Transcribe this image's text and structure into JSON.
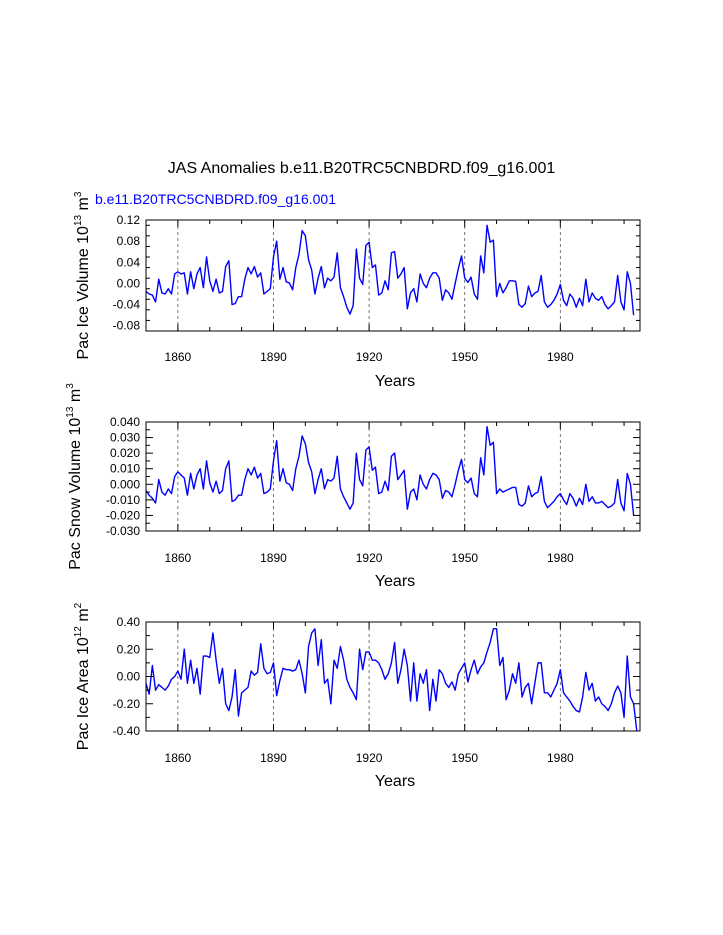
{
  "figure": {
    "title": "JAS Anomalies b.e11.B20TRC5CNBDRD.f09_g16.001",
    "series_label": "b.e11.B20TRC5CNBDRD.f09_g16.001",
    "series_color": "#0000ff",
    "axis_color": "#000000"
  },
  "chart_data": [
    {
      "type": "line",
      "name": "pac-ice-volume",
      "ylabel_main": "Pac Ice Volume 10",
      "ylabel_exp": "13",
      "ylabel_unit": " m",
      "ylabel_unit_exp": "3",
      "xlabel": "Years",
      "xlim": [
        1850,
        2005
      ],
      "ylim": [
        -0.09,
        0.12
      ],
      "xticks": [
        1860,
        1890,
        1920,
        1950,
        1980
      ],
      "xtick_labels": [
        "1860",
        "1890",
        "1920",
        "1950",
        "1980"
      ],
      "yticks": [
        -0.08,
        -0.04,
        0.0,
        0.04,
        0.08,
        0.12
      ],
      "ytick_labels": [
        "-0.08",
        "-0.04",
        "0.00",
        "0.04",
        "0.08",
        "0.12"
      ],
      "grid_x": [
        1860,
        1890,
        1920,
        1950,
        1980
      ],
      "x_start": 1850,
      "values": [
        -0.015,
        -0.02,
        -0.022,
        -0.035,
        0.008,
        -0.018,
        -0.02,
        -0.01,
        -0.02,
        0.018,
        0.022,
        0.018,
        0.02,
        -0.02,
        0.022,
        -0.01,
        0.018,
        0.03,
        -0.008,
        0.05,
        0.005,
        -0.015,
        0.008,
        -0.018,
        -0.015,
        0.032,
        0.043,
        -0.04,
        -0.038,
        -0.025,
        -0.025,
        0.008,
        0.03,
        0.018,
        0.032,
        0.012,
        0.02,
        -0.02,
        -0.015,
        -0.01,
        0.05,
        0.08,
        0.008,
        0.03,
        0.003,
        0.001,
        -0.012,
        0.03,
        0.055,
        0.1,
        0.09,
        0.045,
        0.025,
        -0.02,
        0.01,
        0.032,
        -0.008,
        0.01,
        0.005,
        0.012,
        0.058,
        -0.008,
        -0.025,
        -0.045,
        -0.058,
        -0.042,
        0.065,
        0.01,
        -0.002,
        0.072,
        0.078,
        0.03,
        0.035,
        -0.022,
        -0.018,
        0.005,
        -0.012,
        0.058,
        0.06,
        0.01,
        0.018,
        0.03,
        -0.048,
        -0.018,
        -0.01,
        -0.035,
        0.018,
        0.0,
        -0.008,
        0.01,
        0.02,
        0.02,
        0.01,
        -0.032,
        -0.012,
        -0.018,
        -0.03,
        0.0,
        0.028,
        0.052,
        0.01,
        0.002,
        0.012,
        -0.02,
        -0.03,
        0.052,
        0.02,
        0.11,
        0.078,
        0.082,
        -0.025,
        0.0,
        -0.018,
        -0.008,
        0.005,
        0.005,
        0.004,
        -0.04,
        -0.045,
        -0.038,
        -0.005,
        -0.025,
        -0.018,
        -0.015,
        0.015,
        -0.035,
        -0.045,
        -0.04,
        -0.032,
        -0.02,
        -0.002,
        -0.032,
        -0.042,
        -0.02,
        -0.028,
        -0.045,
        -0.028,
        -0.042,
        0.008,
        -0.035,
        -0.018,
        -0.028,
        -0.032,
        -0.025,
        -0.04,
        -0.048,
        -0.042,
        -0.035,
        0.015,
        -0.035,
        -0.05,
        0.022,
        0.0,
        -0.06
      ]
    },
    {
      "type": "line",
      "name": "pac-snow-volume",
      "ylabel_main": "Pac Snow Volume 10",
      "ylabel_exp": "13",
      "ylabel_unit": " m",
      "ylabel_unit_exp": "3",
      "xlabel": "Years",
      "xlim": [
        1850,
        2005
      ],
      "ylim": [
        -0.03,
        0.04
      ],
      "xticks": [
        1860,
        1890,
        1920,
        1950,
        1980
      ],
      "xtick_labels": [
        "1860",
        "1890",
        "1920",
        "1950",
        "1980"
      ],
      "yticks": [
        -0.03,
        -0.02,
        -0.01,
        0.0,
        0.01,
        0.02,
        0.03,
        0.04
      ],
      "ytick_labels": [
        "-0.030",
        "-0.020",
        "-0.010",
        "0.000",
        "0.010",
        "0.020",
        "0.030",
        "0.040"
      ],
      "grid_x": [
        1860,
        1890,
        1920,
        1950,
        1980
      ],
      "x_start": 1850,
      "values": [
        -0.004,
        -0.007,
        -0.009,
        -0.012,
        0.003,
        -0.005,
        -0.007,
        -0.003,
        -0.006,
        0.005,
        0.008,
        0.006,
        0.004,
        -0.007,
        0.007,
        -0.003,
        0.006,
        0.01,
        -0.003,
        0.015,
        0.001,
        -0.005,
        0.002,
        -0.006,
        -0.004,
        0.01,
        0.015,
        -0.011,
        -0.01,
        -0.007,
        -0.007,
        0.003,
        0.01,
        0.006,
        0.011,
        0.004,
        0.007,
        -0.006,
        -0.005,
        -0.003,
        0.015,
        0.028,
        0.002,
        0.01,
        0.001,
        0.0,
        -0.004,
        0.01,
        0.018,
        0.031,
        0.026,
        0.014,
        0.008,
        -0.006,
        0.003,
        0.01,
        -0.003,
        0.003,
        0.002,
        0.004,
        0.018,
        -0.003,
        -0.008,
        -0.012,
        -0.016,
        -0.012,
        0.02,
        0.003,
        -0.001,
        0.022,
        0.024,
        0.009,
        0.011,
        -0.006,
        -0.005,
        0.002,
        -0.004,
        0.018,
        0.02,
        0.003,
        0.006,
        0.009,
        -0.016,
        -0.005,
        -0.003,
        -0.01,
        0.006,
        0.0,
        -0.003,
        0.003,
        0.007,
        0.006,
        0.003,
        -0.009,
        -0.004,
        -0.005,
        -0.008,
        0.0,
        0.009,
        0.016,
        0.003,
        0.001,
        0.004,
        -0.006,
        -0.008,
        0.017,
        0.006,
        0.037,
        0.025,
        0.027,
        -0.006,
        -0.003,
        -0.005,
        -0.004,
        -0.003,
        -0.002,
        -0.002,
        -0.013,
        -0.014,
        -0.012,
        -0.001,
        -0.008,
        -0.006,
        -0.005,
        0.005,
        -0.011,
        -0.015,
        -0.013,
        -0.011,
        -0.008,
        -0.006,
        -0.01,
        -0.013,
        -0.006,
        -0.009,
        -0.014,
        -0.009,
        -0.013,
        0.0,
        -0.011,
        -0.008,
        -0.012,
        -0.012,
        -0.011,
        -0.013,
        -0.015,
        -0.014,
        -0.012,
        0.003,
        -0.012,
        -0.017,
        0.007,
        0.0,
        -0.02
      ]
    },
    {
      "type": "line",
      "name": "pac-ice-area",
      "ylabel_main": "Pac Ice Area 10",
      "ylabel_exp": "12",
      "ylabel_unit": " m",
      "ylabel_unit_exp": "2",
      "xlabel": "Years",
      "xlim": [
        1850,
        2005
      ],
      "ylim": [
        -0.4,
        0.4
      ],
      "xticks": [
        1860,
        1890,
        1920,
        1950,
        1980
      ],
      "xtick_labels": [
        "1860",
        "1890",
        "1920",
        "1950",
        "1980"
      ],
      "yticks": [
        -0.4,
        -0.2,
        0.0,
        0.2,
        0.4
      ],
      "ytick_labels": [
        "-0.40",
        "-0.20",
        "0.00",
        "0.20",
        "0.40"
      ],
      "grid_x": [
        1860,
        1890,
        1920,
        1950,
        1980
      ],
      "x_start": 1850,
      "values": [
        -0.05,
        -0.13,
        0.08,
        -0.1,
        -0.06,
        -0.08,
        -0.1,
        -0.07,
        -0.02,
        0.0,
        0.04,
        -0.02,
        0.2,
        -0.05,
        0.12,
        -0.05,
        0.06,
        -0.13,
        0.15,
        0.15,
        0.14,
        0.32,
        0.12,
        -0.05,
        0.06,
        -0.2,
        -0.25,
        -0.15,
        0.05,
        -0.29,
        -0.12,
        -0.1,
        -0.08,
        0.04,
        0.01,
        0.03,
        0.24,
        0.06,
        0.02,
        0.03,
        0.1,
        -0.14,
        -0.03,
        0.06,
        0.05,
        0.05,
        0.04,
        0.05,
        0.12,
        0.02,
        -0.12,
        0.22,
        0.32,
        0.35,
        0.08,
        0.27,
        -0.05,
        -0.02,
        -0.2,
        0.12,
        0.06,
        0.22,
        0.12,
        -0.02,
        -0.08,
        -0.12,
        -0.17,
        0.2,
        0.05,
        0.18,
        0.18,
        0.12,
        0.12,
        0.1,
        0.05,
        -0.02,
        0.02,
        0.1,
        0.25,
        -0.05,
        0.05,
        0.2,
        0.08,
        -0.18,
        0.1,
        -0.18,
        0.02,
        -0.05,
        0.05,
        -0.25,
        -0.02,
        -0.18,
        0.05,
        0.02,
        -0.05,
        -0.08,
        -0.04,
        -0.1,
        0.02,
        0.06,
        0.1,
        -0.04,
        0.05,
        0.12,
        0.02,
        0.07,
        0.1,
        0.18,
        0.25,
        0.35,
        0.35,
        0.08,
        0.14,
        -0.17,
        -0.1,
        0.02,
        -0.05,
        0.1,
        -0.15,
        -0.08,
        -0.05,
        -0.2,
        -0.05,
        0.1,
        0.1,
        -0.12,
        -0.12,
        -0.15,
        -0.1,
        -0.05,
        0.05,
        -0.12,
        -0.15,
        -0.18,
        -0.22,
        -0.25,
        -0.26,
        -0.15,
        0.03,
        -0.1,
        -0.05,
        -0.18,
        -0.15,
        -0.2,
        -0.22,
        -0.25,
        -0.2,
        -0.12,
        -0.07,
        -0.12,
        -0.3,
        0.15,
        -0.15,
        -0.2,
        -0.4
      ]
    }
  ]
}
